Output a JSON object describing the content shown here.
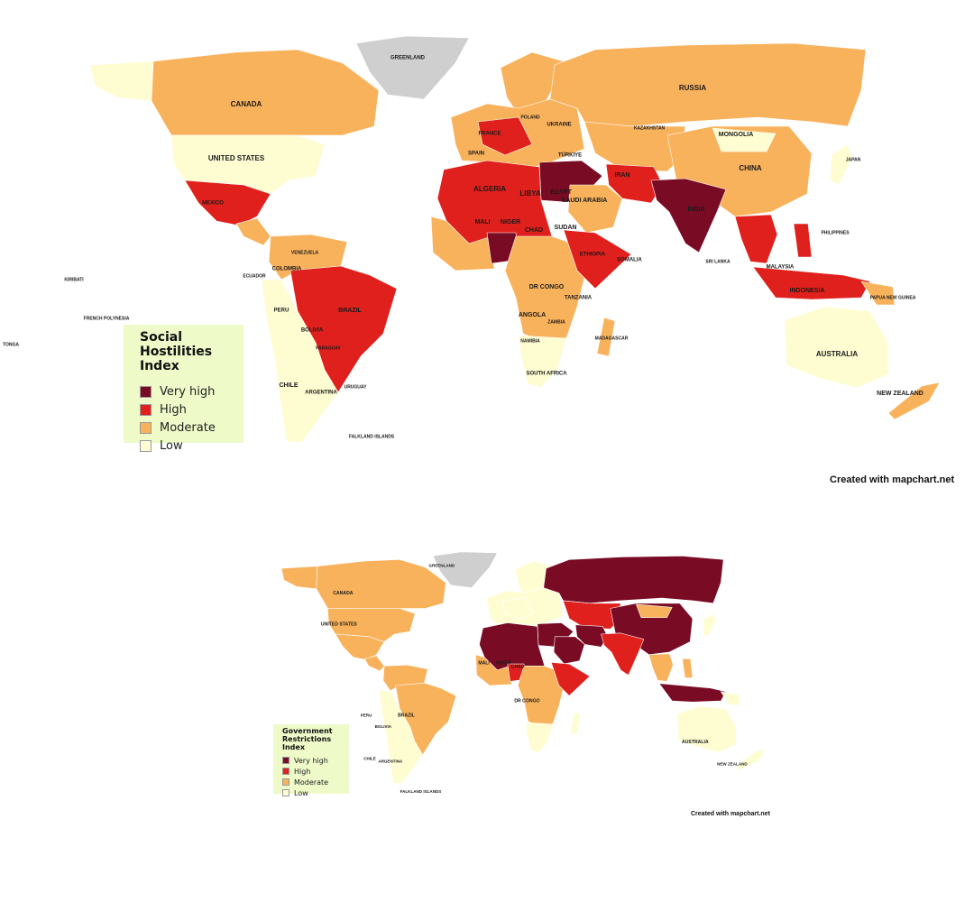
{
  "maps": [
    {
      "title": "Social Hostilities Index",
      "legend": [
        {
          "label": "Very high",
          "color": "#7a0b24"
        },
        {
          "label": "High",
          "color": "#e0201c"
        },
        {
          "label": "Moderate",
          "color": "#f9b25c"
        },
        {
          "label": "Low",
          "color": "#fefdd2"
        }
      ],
      "credit": "Created with mapchart.net",
      "labels": [
        "RUSSIA",
        "CANADA",
        "UNITED STATES",
        "MONGOLIA",
        "CHINA",
        "KAZAKHSTAN",
        "GREENLAND",
        "ALGERIA",
        "LIBYA",
        "MALI",
        "NIGER",
        "CHAD",
        "SUDAN",
        "EGYPT",
        "SAUDI ARABIA",
        "IRAN",
        "INDIA",
        "BRAZIL",
        "PERU",
        "BOLIVIA",
        "CHILE",
        "ARGENTINA",
        "COLOMBIA",
        "AUSTRALIA",
        "NEW ZEALAND",
        "INDONESIA",
        "MALAYSIA",
        "SPAIN",
        "FRANCE",
        "UKRAINE",
        "POLAND",
        "TÜRKIYE",
        "ETHIOPIA",
        "DR CONGO",
        "ANGOLA",
        "SOUTH AFRICA",
        "TANZANIA",
        "MADAGASCAR",
        "MEXICO",
        "JAPAN",
        "PHILIPPINES",
        "SRI LANKA",
        "SOMALIA",
        "PAPUA NEW GUINEA",
        "FRENCH POLYNESIA",
        "KIRIBATI",
        "TONGA",
        "ECUADOR",
        "URUGUAY",
        "PARAGUAY",
        "VENEZUELA",
        "ZAMBIA",
        "NAMIBIA",
        "FALKLAND ISLANDS"
      ]
    },
    {
      "title": "Government Restrictions Index",
      "legend": [
        {
          "label": "Very high",
          "color": "#7a0b24"
        },
        {
          "label": "High",
          "color": "#e0201c"
        },
        {
          "label": "Moderate",
          "color": "#f9b25c"
        },
        {
          "label": "Low",
          "color": "#fefdd2"
        }
      ],
      "credit": "Created with mapchart.net",
      "labels": [
        "GREENLAND",
        "CANADA",
        "UNITED STATES",
        "BRAZIL",
        "MALI",
        "NIGER",
        "CHAD",
        "DR CONGO",
        "NEW ZEALAND",
        "AUSTRALIA",
        "PERU",
        "BOLIVIA",
        "CHILE",
        "ARGENTINA",
        "FALKLAND ISLANDS"
      ]
    }
  ]
}
